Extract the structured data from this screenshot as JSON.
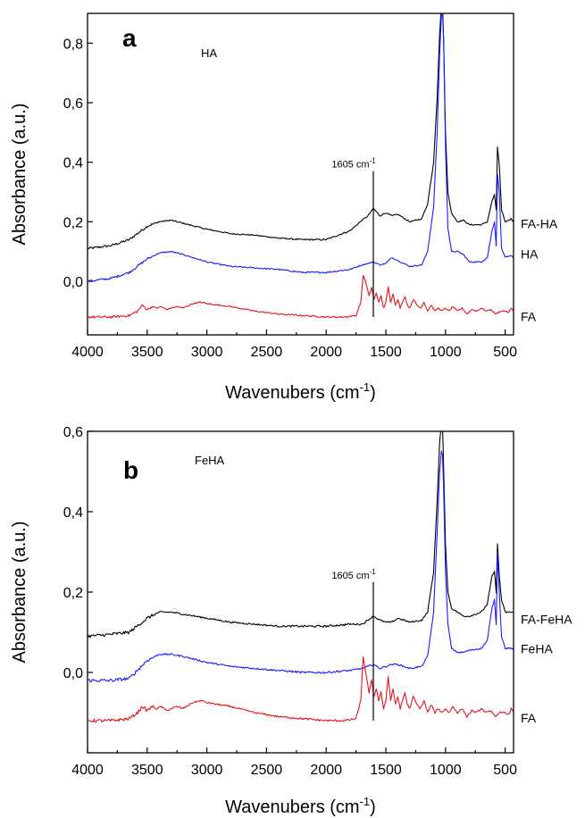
{
  "colors": {
    "black": "#000000",
    "blue": "#1a1aff",
    "red": "#e8141b"
  },
  "chart_data": [
    {
      "type": "line",
      "panel_letter": "a",
      "title": "HA",
      "xlabel": "Wavenubers (cm",
      "xlabel_sup": "-1",
      "xlabel_close": ")",
      "ylabel": "Absorbance (a.u.)",
      "xlim": [
        4000,
        430
      ],
      "ylim": [
        -0.18,
        0.9
      ],
      "x_ticks": [
        4000,
        3500,
        3000,
        2500,
        2000,
        1500,
        1000,
        500
      ],
      "x_tick_labels": [
        "4000",
        "3500",
        "3000",
        "2500",
        "2000",
        "1500",
        "1000",
        "500"
      ],
      "y_ticks": [
        0.0,
        0.2,
        0.4,
        0.6,
        0.8
      ],
      "y_tick_labels": [
        "0,0",
        "0,2",
        "0,4",
        "0,6",
        "0,8"
      ],
      "annotation": {
        "text": "1605 cm",
        "sup": "-1",
        "x": 1605,
        "y_from": -0.12,
        "y_to": 0.37
      },
      "series": [
        {
          "name": "FA-HA",
          "color": "black",
          "x": [
            4000,
            3800,
            3650,
            3500,
            3400,
            3300,
            3200,
            3000,
            2800,
            2600,
            2400,
            2200,
            2000,
            1800,
            1700,
            1650,
            1605,
            1550,
            1500,
            1450,
            1400,
            1300,
            1200,
            1150,
            1100,
            1070,
            1050,
            1035,
            1025,
            1015,
            1000,
            980,
            950,
            900,
            850,
            800,
            700,
            650,
            610,
            590,
            575,
            565,
            550,
            530,
            500,
            450,
            430
          ],
          "y": [
            0.11,
            0.12,
            0.14,
            0.185,
            0.2,
            0.205,
            0.195,
            0.175,
            0.16,
            0.155,
            0.145,
            0.14,
            0.14,
            0.17,
            0.205,
            0.22,
            0.245,
            0.22,
            0.23,
            0.22,
            0.225,
            0.2,
            0.21,
            0.26,
            0.4,
            0.62,
            0.83,
            0.92,
            0.93,
            0.8,
            0.5,
            0.3,
            0.23,
            0.2,
            0.205,
            0.19,
            0.19,
            0.2,
            0.27,
            0.29,
            0.24,
            0.45,
            0.39,
            0.24,
            0.2,
            0.21,
            0.2
          ]
        },
        {
          "name": "HA",
          "color": "blue",
          "x": [
            4000,
            3800,
            3650,
            3500,
            3400,
            3300,
            3200,
            3000,
            2800,
            2600,
            2400,
            2200,
            2000,
            1800,
            1700,
            1650,
            1605,
            1550,
            1500,
            1450,
            1400,
            1300,
            1200,
            1150,
            1100,
            1070,
            1050,
            1035,
            1025,
            1015,
            1000,
            980,
            950,
            900,
            850,
            800,
            700,
            650,
            610,
            590,
            575,
            565,
            550,
            530,
            500,
            450,
            430
          ],
          "y": [
            0.0,
            0.01,
            0.03,
            0.075,
            0.095,
            0.1,
            0.09,
            0.065,
            0.05,
            0.045,
            0.04,
            0.03,
            0.03,
            0.04,
            0.055,
            0.06,
            0.065,
            0.055,
            0.06,
            0.08,
            0.07,
            0.05,
            0.055,
            0.1,
            0.25,
            0.5,
            0.76,
            0.89,
            0.9,
            0.8,
            0.45,
            0.18,
            0.1,
            0.1,
            0.09,
            0.065,
            0.065,
            0.08,
            0.17,
            0.2,
            0.12,
            0.36,
            0.3,
            0.11,
            0.08,
            0.085,
            0.08
          ]
        },
        {
          "name": "FA",
          "color": "red",
          "x": [
            4000,
            3800,
            3650,
            3580,
            3540,
            3500,
            3460,
            3420,
            3380,
            3340,
            3300,
            3250,
            3200,
            3120,
            3050,
            3000,
            2900,
            2800,
            2600,
            2400,
            2200,
            2000,
            1850,
            1750,
            1710,
            1690,
            1670,
            1640,
            1620,
            1600,
            1580,
            1560,
            1540,
            1520,
            1500,
            1480,
            1460,
            1440,
            1420,
            1400,
            1380,
            1360,
            1340,
            1320,
            1300,
            1270,
            1240,
            1210,
            1180,
            1150,
            1120,
            1090,
            1060,
            1030,
            1000,
            970,
            940,
            900,
            860,
            820,
            780,
            740,
            700,
            660,
            620,
            580,
            540,
            500,
            470,
            450,
            430
          ],
          "y": [
            -0.12,
            -0.12,
            -0.115,
            -0.1,
            -0.08,
            -0.095,
            -0.085,
            -0.09,
            -0.085,
            -0.095,
            -0.09,
            -0.085,
            -0.09,
            -0.075,
            -0.07,
            -0.075,
            -0.08,
            -0.085,
            -0.1,
            -0.11,
            -0.115,
            -0.12,
            -0.12,
            -0.115,
            -0.07,
            0.02,
            0.0,
            -0.05,
            -0.02,
            -0.06,
            -0.04,
            -0.07,
            -0.05,
            -0.09,
            -0.07,
            -0.02,
            -0.07,
            -0.04,
            -0.08,
            -0.06,
            -0.09,
            -0.07,
            -0.05,
            -0.08,
            -0.09,
            -0.06,
            -0.08,
            -0.09,
            -0.07,
            -0.1,
            -0.08,
            -0.1,
            -0.09,
            -0.1,
            -0.09,
            -0.1,
            -0.085,
            -0.1,
            -0.09,
            -0.11,
            -0.095,
            -0.1,
            -0.09,
            -0.1,
            -0.095,
            -0.11,
            -0.1,
            -0.1,
            -0.105,
            -0.09,
            -0.1
          ]
        }
      ]
    },
    {
      "type": "line",
      "panel_letter": "b",
      "title": "FeHA",
      "xlabel": "Wavenubers (cm",
      "xlabel_sup": "-1",
      "xlabel_close": ")",
      "ylabel": "Absorbance (a.u.)",
      "xlim": [
        4000,
        430
      ],
      "ylim": [
        -0.2,
        0.6
      ],
      "x_ticks": [
        4000,
        3500,
        3000,
        2500,
        2000,
        1500,
        1000,
        500
      ],
      "x_tick_labels": [
        "4000",
        "3500",
        "3000",
        "2500",
        "2000",
        "1500",
        "1000",
        "500"
      ],
      "y_ticks": [
        0.0,
        0.2,
        0.4,
        0.6
      ],
      "y_tick_labels": [
        "0,0",
        "0,2",
        "0,4",
        "0,6"
      ],
      "annotation": {
        "text": "1605 cm",
        "sup": "-1",
        "x": 1605,
        "y_from": -0.12,
        "y_to": 0.225
      },
      "series": [
        {
          "name": "FA-FeHA",
          "color": "black",
          "x": [
            4000,
            3800,
            3650,
            3500,
            3400,
            3300,
            3200,
            3000,
            2800,
            2600,
            2400,
            2200,
            2000,
            1800,
            1700,
            1650,
            1605,
            1550,
            1500,
            1450,
            1400,
            1300,
            1200,
            1150,
            1100,
            1070,
            1050,
            1035,
            1025,
            1015,
            1000,
            980,
            950,
            900,
            850,
            800,
            700,
            650,
            610,
            590,
            575,
            565,
            550,
            530,
            500,
            450,
            430
          ],
          "y": [
            0.09,
            0.095,
            0.1,
            0.135,
            0.15,
            0.15,
            0.145,
            0.135,
            0.125,
            0.12,
            0.115,
            0.115,
            0.115,
            0.12,
            0.12,
            0.13,
            0.14,
            0.13,
            0.125,
            0.125,
            0.135,
            0.125,
            0.13,
            0.15,
            0.25,
            0.43,
            0.57,
            0.62,
            0.61,
            0.5,
            0.32,
            0.2,
            0.16,
            0.15,
            0.14,
            0.14,
            0.15,
            0.17,
            0.24,
            0.25,
            0.2,
            0.32,
            0.24,
            0.18,
            0.15,
            0.15,
            0.15
          ]
        },
        {
          "name": "FeHA",
          "color": "blue",
          "x": [
            4000,
            3800,
            3650,
            3500,
            3400,
            3300,
            3200,
            3000,
            2800,
            2600,
            2400,
            2200,
            2000,
            1800,
            1700,
            1650,
            1605,
            1550,
            1500,
            1450,
            1400,
            1300,
            1200,
            1150,
            1100,
            1070,
            1050,
            1035,
            1025,
            1015,
            1000,
            980,
            950,
            900,
            850,
            800,
            700,
            650,
            610,
            590,
            575,
            565,
            550,
            530,
            500,
            450,
            430
          ],
          "y": [
            -0.02,
            -0.02,
            -0.015,
            0.03,
            0.045,
            0.045,
            0.04,
            0.025,
            0.015,
            0.01,
            0.005,
            0.0,
            0.0,
            0.005,
            0.01,
            0.015,
            0.02,
            0.01,
            0.015,
            0.02,
            0.02,
            0.01,
            0.015,
            0.04,
            0.15,
            0.35,
            0.5,
            0.55,
            0.54,
            0.45,
            0.25,
            0.12,
            0.06,
            0.05,
            0.05,
            0.055,
            0.06,
            0.08,
            0.16,
            0.18,
            0.12,
            0.3,
            0.2,
            0.09,
            0.06,
            0.06,
            0.055
          ]
        },
        {
          "name": "FA",
          "color": "red",
          "x": [
            4000,
            3800,
            3650,
            3580,
            3540,
            3500,
            3460,
            3420,
            3380,
            3340,
            3300,
            3250,
            3200,
            3120,
            3050,
            3000,
            2900,
            2800,
            2600,
            2400,
            2200,
            2000,
            1850,
            1750,
            1710,
            1690,
            1670,
            1640,
            1620,
            1600,
            1580,
            1560,
            1540,
            1520,
            1500,
            1480,
            1460,
            1440,
            1420,
            1400,
            1380,
            1360,
            1340,
            1320,
            1300,
            1270,
            1240,
            1210,
            1180,
            1150,
            1120,
            1090,
            1060,
            1030,
            1000,
            970,
            940,
            900,
            860,
            820,
            780,
            740,
            700,
            660,
            620,
            580,
            540,
            500,
            470,
            450,
            430
          ],
          "y": [
            -0.12,
            -0.12,
            -0.115,
            -0.1,
            -0.085,
            -0.095,
            -0.085,
            -0.09,
            -0.085,
            -0.095,
            -0.09,
            -0.085,
            -0.09,
            -0.075,
            -0.07,
            -0.075,
            -0.08,
            -0.085,
            -0.1,
            -0.11,
            -0.115,
            -0.12,
            -0.12,
            -0.115,
            -0.07,
            0.04,
            0.0,
            -0.05,
            -0.02,
            -0.06,
            -0.04,
            -0.07,
            -0.05,
            -0.09,
            -0.07,
            -0.01,
            -0.07,
            -0.04,
            -0.08,
            -0.06,
            -0.09,
            -0.07,
            -0.05,
            -0.08,
            -0.09,
            -0.06,
            -0.08,
            -0.09,
            -0.07,
            -0.1,
            -0.08,
            -0.1,
            -0.09,
            -0.1,
            -0.09,
            -0.1,
            -0.085,
            -0.1,
            -0.09,
            -0.11,
            -0.095,
            -0.1,
            -0.09,
            -0.1,
            -0.095,
            -0.11,
            -0.1,
            -0.1,
            -0.105,
            -0.09,
            -0.1
          ]
        }
      ]
    }
  ]
}
